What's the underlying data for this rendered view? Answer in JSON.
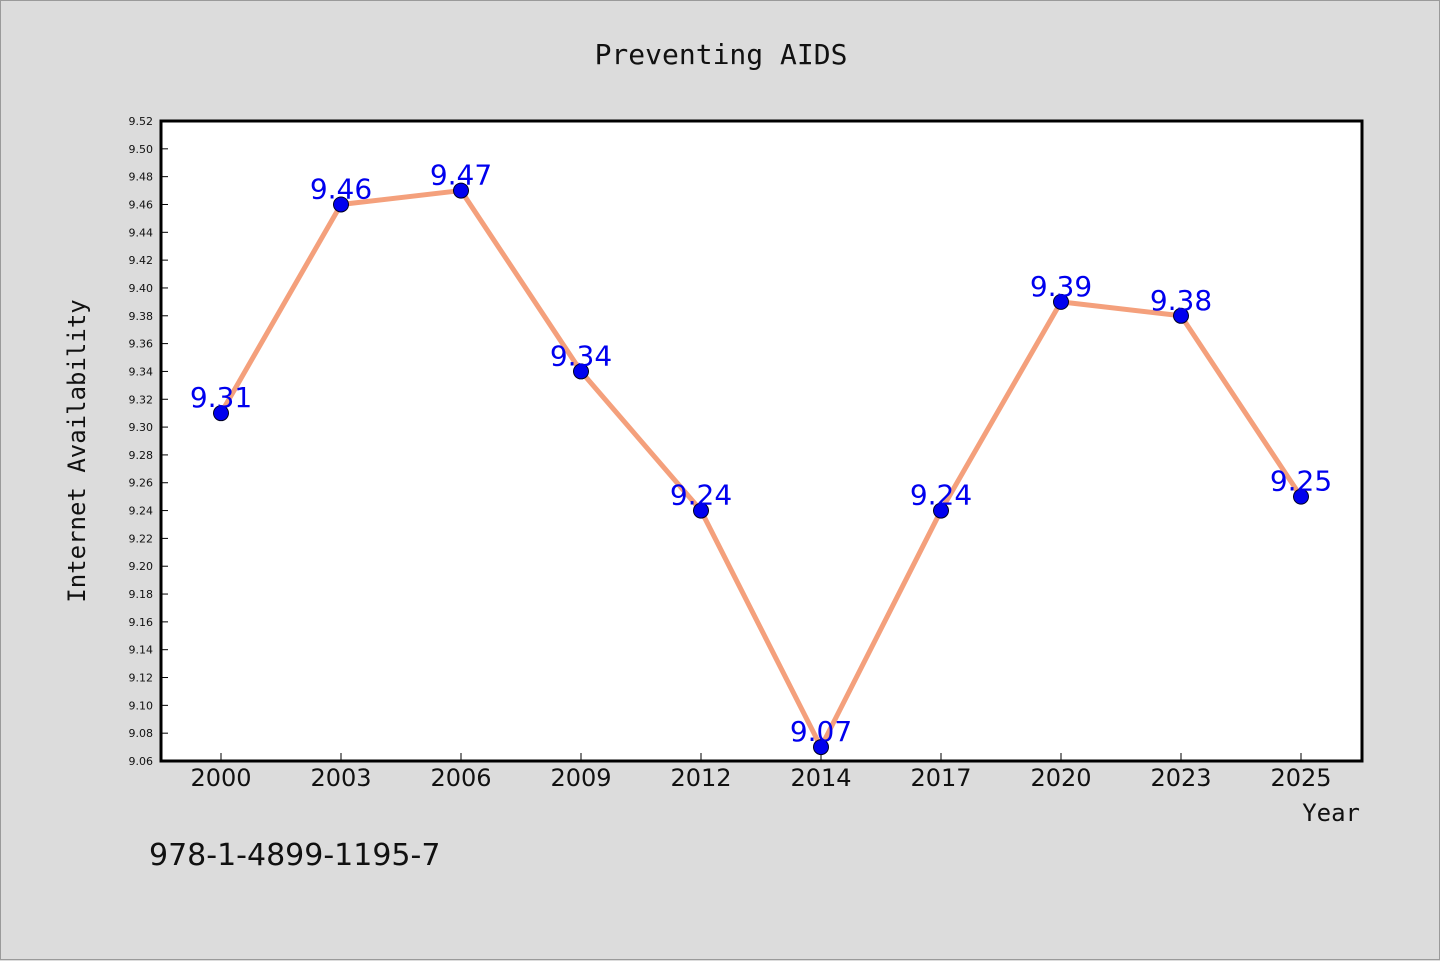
{
  "chart_data": {
    "type": "line",
    "title": "Preventing AIDS",
    "xlabel": "Year",
    "ylabel": "Internet Availability",
    "categories": [
      "2000",
      "2003",
      "2006",
      "2009",
      "2012",
      "2014",
      "2017",
      "2020",
      "2023",
      "2025"
    ],
    "series": [
      {
        "values": [
          9.31,
          9.46,
          9.47,
          9.34,
          9.24,
          9.07,
          9.24,
          9.39,
          9.38,
          9.25
        ],
        "data_labels": [
          "9.31",
          "9.46",
          "9.47",
          "9.34",
          "9.24",
          "9.07",
          "9.24",
          "9.39",
          "9.38",
          "9.25"
        ],
        "line_color": "#f4a07c",
        "marker_color": "#0000ee"
      }
    ],
    "ylim": [
      9.06,
      9.52
    ],
    "yticks": [
      "9.06",
      "9.08",
      "9.10",
      "9.12",
      "9.14",
      "9.16",
      "9.18",
      "9.20",
      "9.22",
      "9.24",
      "9.26",
      "9.28",
      "9.30",
      "9.32",
      "9.34",
      "9.36",
      "9.38",
      "9.40",
      "9.42",
      "9.44",
      "9.46",
      "9.48",
      "9.50",
      "9.52"
    ],
    "grid": false,
    "legend": "none",
    "label_color": "#0000ee"
  },
  "annotation": "978-1-4899-1195-7",
  "colors": {
    "background": "#dcdcdc",
    "plot_background": "#ffffff",
    "axis": "#000000"
  }
}
